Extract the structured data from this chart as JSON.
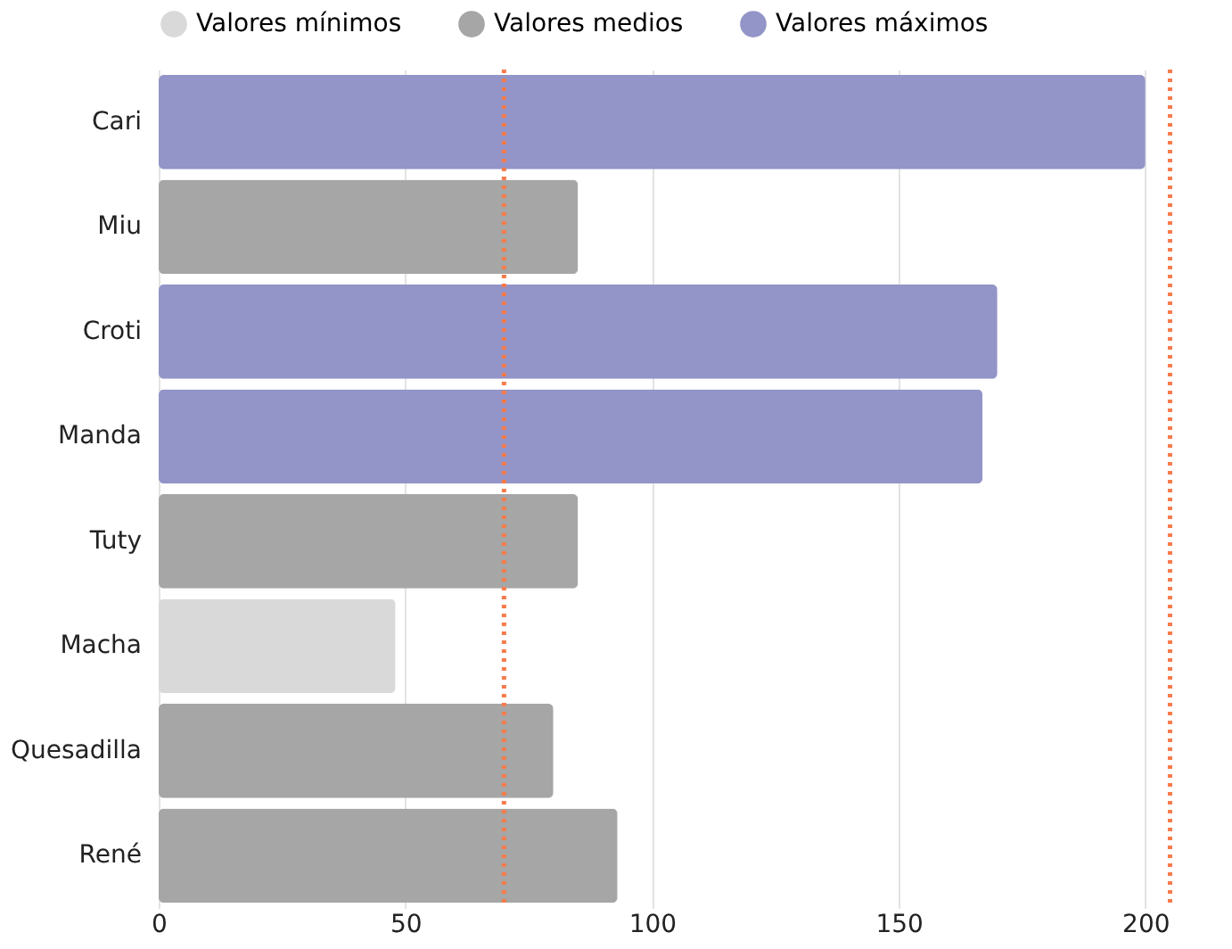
{
  "chart_data": {
    "type": "bar",
    "orientation": "horizontal",
    "categories": [
      "Cari",
      "Miu",
      "Croti",
      "Manda",
      "Tuty",
      "Macha",
      "Quesadilla",
      "René"
    ],
    "series": [
      {
        "name": "Valores mínimos",
        "color": "#d9d9d9",
        "values": [
          null,
          null,
          null,
          null,
          null,
          48,
          null,
          null
        ]
      },
      {
        "name": "Valores medios",
        "color": "#a6a6a6",
        "values": [
          null,
          85,
          null,
          null,
          85,
          null,
          80,
          93
        ]
      },
      {
        "name": "Valores máximos",
        "color": "#9394c7",
        "values": [
          200,
          null,
          170,
          167,
          null,
          null,
          null,
          null
        ]
      }
    ],
    "xlim": [
      0,
      206
    ],
    "xticks": [
      0,
      50,
      100,
      150,
      200
    ],
    "grid": "x",
    "legend": "top",
    "ref_lines": [
      {
        "axis": "x",
        "value": 70,
        "color": "#f97b4a",
        "line_style": "dotted"
      },
      {
        "axis": "x",
        "value": 205,
        "color": "#f97b4a",
        "line_style": "dotted"
      }
    ]
  }
}
